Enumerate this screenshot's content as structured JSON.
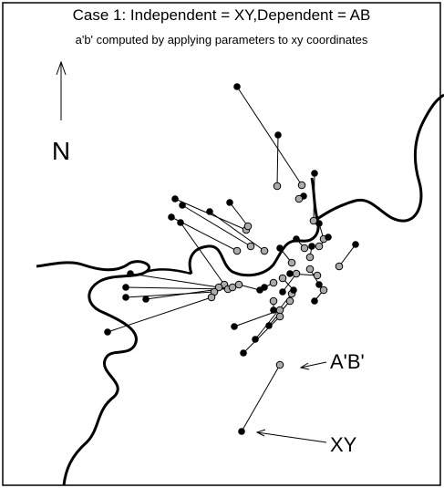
{
  "header": {
    "title": "Case 1: Independent = XY,Dependent = AB",
    "subtitle": "a'b' computed by applying parameters to xy coordinates"
  },
  "north_label": "N",
  "legend": {
    "transformed": "A'B'",
    "original": "XY"
  }
}
